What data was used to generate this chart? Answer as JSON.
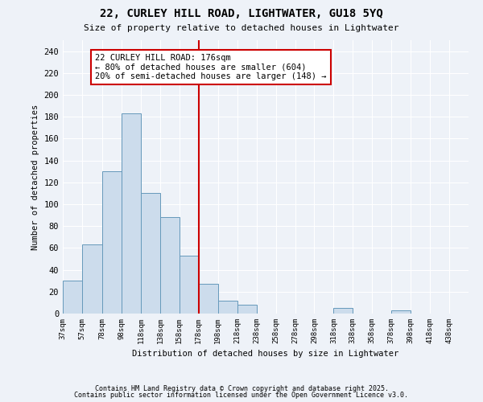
{
  "title": "22, CURLEY HILL ROAD, LIGHTWATER, GU18 5YQ",
  "subtitle": "Size of property relative to detached houses in Lightwater",
  "xlabel": "Distribution of detached houses by size in Lightwater",
  "ylabel": "Number of detached properties",
  "bar_color": "#ccdcec",
  "bar_edge_color": "#6699bb",
  "background_color": "#eef2f8",
  "grid_color": "#ffffff",
  "bins_labels": [
    "37sqm",
    "57sqm",
    "78sqm",
    "98sqm",
    "118sqm",
    "138sqm",
    "158sqm",
    "178sqm",
    "198sqm",
    "218sqm",
    "238sqm",
    "258sqm",
    "278sqm",
    "298sqm",
    "318sqm",
    "338sqm",
    "358sqm",
    "378sqm",
    "398sqm",
    "418sqm",
    "438sqm"
  ],
  "bin_edges": [
    37,
    57,
    78,
    98,
    118,
    138,
    158,
    178,
    198,
    218,
    238,
    258,
    278,
    298,
    318,
    338,
    358,
    378,
    398,
    418,
    438
  ],
  "counts": [
    30,
    63,
    130,
    183,
    110,
    88,
    53,
    27,
    12,
    8,
    0,
    0,
    0,
    0,
    5,
    0,
    0,
    3,
    0,
    0
  ],
  "vline_x": 178,
  "vline_color": "#cc0000",
  "ann_line1": "22 CURLEY HILL ROAD: 176sqm",
  "ann_line2": "← 80% of detached houses are smaller (604)",
  "ann_line3": "20% of semi-detached houses are larger (148) →",
  "annotation_box_color": "#ffffff",
  "annotation_box_edge": "#cc0000",
  "footnote1": "Contains HM Land Registry data © Crown copyright and database right 2025.",
  "footnote2": "Contains public sector information licensed under the Open Government Licence v3.0.",
  "xlim_start": 37,
  "xlim_end": 458,
  "ylim_max": 250,
  "yticks": [
    0,
    20,
    40,
    60,
    80,
    100,
    120,
    140,
    160,
    180,
    200,
    220,
    240
  ]
}
